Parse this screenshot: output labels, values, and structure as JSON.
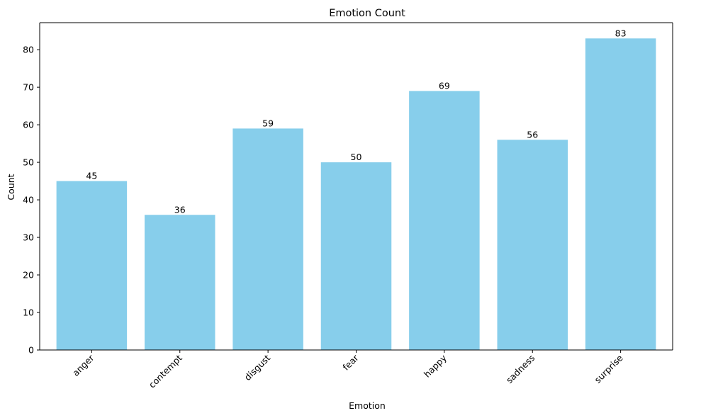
{
  "chart_data": {
    "type": "bar",
    "title": "Emotion Count",
    "xlabel": "Emotion",
    "ylabel": "Count",
    "categories": [
      "anger",
      "contempt",
      "disgust",
      "fear",
      "happy",
      "sadness",
      "surprise"
    ],
    "values": [
      45,
      36,
      59,
      50,
      69,
      56,
      83
    ],
    "ylim": [
      0,
      87.2
    ],
    "yticks": [
      0,
      10,
      20,
      30,
      40,
      50,
      60,
      70,
      80
    ],
    "ytick_labels": [
      "0",
      "10",
      "20",
      "30",
      "40",
      "50",
      "60",
      "70",
      "80"
    ],
    "data_labels": [
      "45",
      "36",
      "59",
      "50",
      "69",
      "56",
      "83"
    ],
    "x_tick_rotation_deg": 45,
    "bar_color": "#87ceeb",
    "grid": false,
    "legend": "none"
  }
}
